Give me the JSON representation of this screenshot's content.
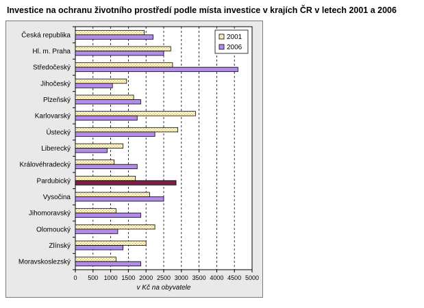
{
  "chart_data": {
    "type": "bar",
    "orientation": "horizontal",
    "title": "Investice na ochranu životního prostředí podle místa investice v krajích ČR v letech 2001 a 2006",
    "xlabel": "v Kč na obyvatele",
    "ylabel": "",
    "xlim": [
      0,
      5000
    ],
    "xticks": [
      0,
      500,
      1000,
      1500,
      2000,
      2500,
      3000,
      3500,
      4000,
      4500,
      5000
    ],
    "grid": "vertical-dashed",
    "legend_position": "top-right",
    "categories": [
      "Česká republika",
      "Hl. m. Praha",
      "Středočeský",
      "Jihočeský",
      "Plzeňský",
      "Karlovarský",
      "Ústecký",
      "Liberecký",
      "Královéhradecký",
      "Pardubický",
      "Vysočina",
      "Jihomoravský",
      "Olomoucký",
      "Zlínský",
      "Moravskoslezský"
    ],
    "series": [
      {
        "name": "2001",
        "values": [
          1950,
          2700,
          2750,
          1450,
          1650,
          3400,
          2900,
          1350,
          1100,
          1700,
          2100,
          1150,
          2250,
          2000,
          1150
        ]
      },
      {
        "name": "2006",
        "values": [
          2200,
          2500,
          4600,
          1050,
          1850,
          1750,
          2250,
          900,
          1750,
          2850,
          2500,
          1850,
          1200,
          1350,
          1850
        ]
      }
    ],
    "highlight": {
      "category": "Pardubický",
      "series": "2006",
      "color": "#7a1f45"
    }
  },
  "colors": {
    "series_2001": "#fff4c0",
    "series_2001_pattern": "#c8a878",
    "series_2006": "#b18ce8",
    "highlight": "#7a1f45"
  }
}
